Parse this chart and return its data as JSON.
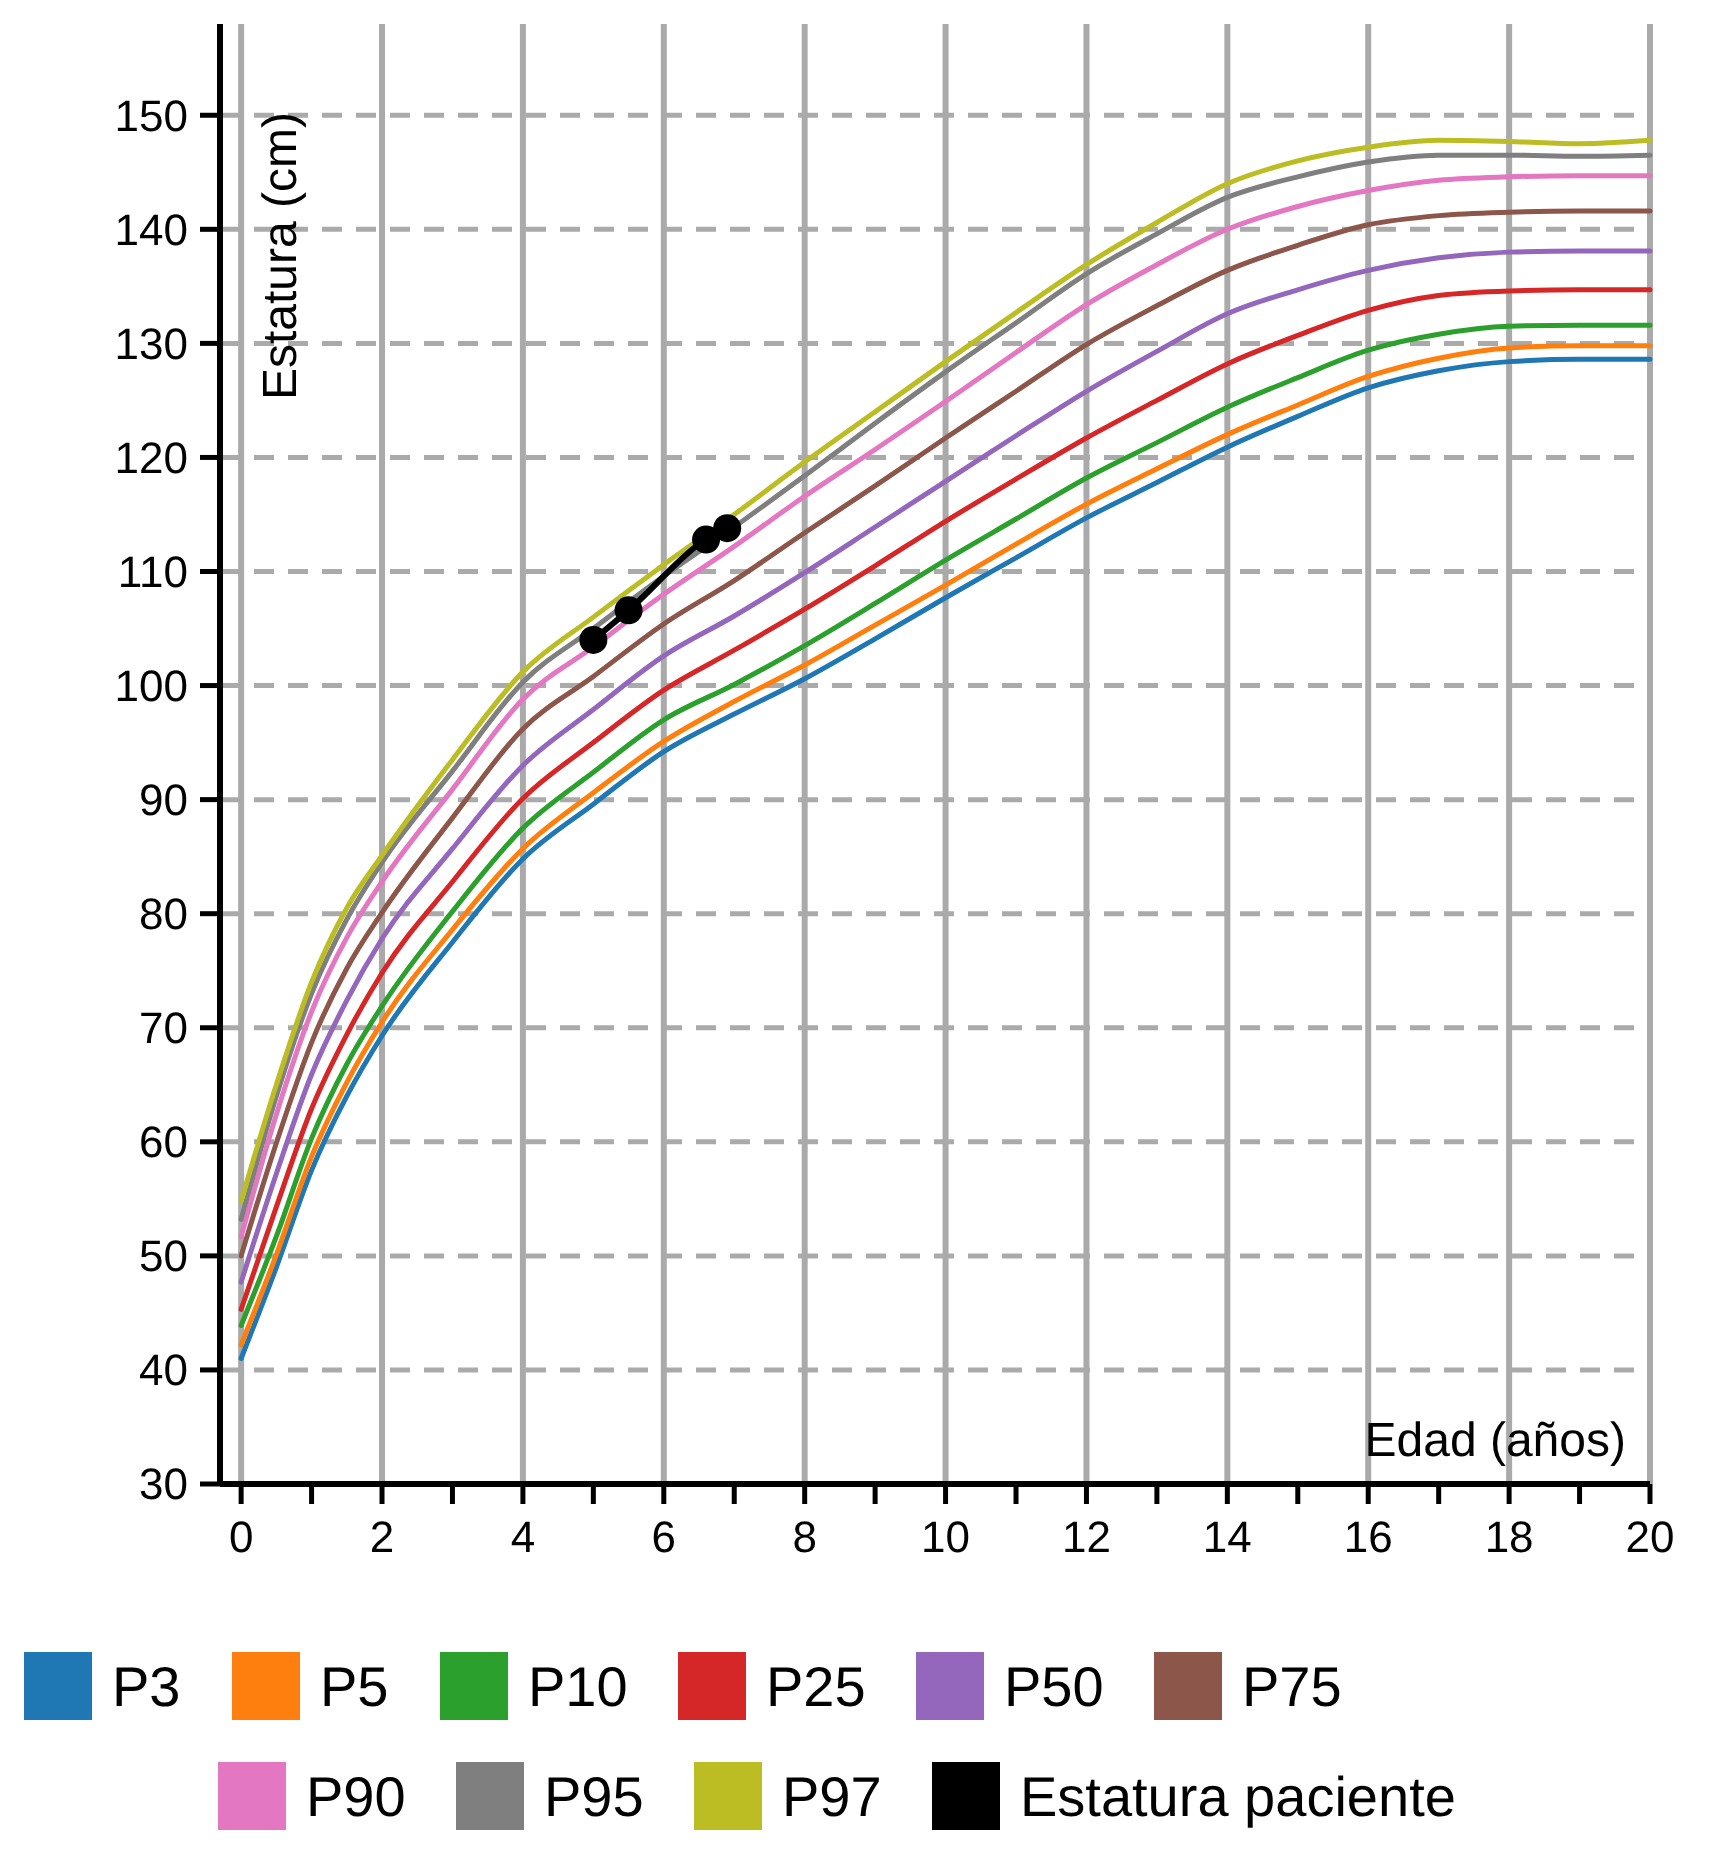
{
  "chart_data": {
    "type": "line",
    "xlabel": "Edad (años)",
    "ylabel": "Estatura (cm)",
    "x": [
      0,
      0.5,
      1,
      1.5,
      2,
      3,
      4,
      5,
      6,
      7,
      8,
      9,
      10,
      11,
      12,
      13,
      14,
      15,
      16,
      17,
      18,
      19,
      20
    ],
    "xlim": [
      -0.3,
      20
    ],
    "ylim": [
      30,
      158
    ],
    "xticks": [
      0,
      {
        "value": 1,
        "label": null
      },
      2,
      {
        "value": 3,
        "label": null
      },
      4,
      {
        "value": 5,
        "label": null
      },
      6,
      {
        "value": 7,
        "label": null
      },
      8,
      {
        "value": 9,
        "label": null
      },
      10,
      {
        "value": 11,
        "label": null
      },
      12,
      {
        "value": 13,
        "label": null
      },
      14,
      {
        "value": 15,
        "label": null
      },
      16,
      {
        "value": 17,
        "label": null
      },
      18,
      {
        "value": 19,
        "label": null
      },
      20
    ],
    "yticks": [
      30,
      40,
      50,
      60,
      70,
      80,
      90,
      100,
      110,
      120,
      130,
      140,
      150
    ],
    "grid": true,
    "legend": "bottom",
    "marker": "none",
    "line_style": "solid",
    "series": [
      {
        "name": "P3",
        "color": "#1f77b4",
        "values": [
          41.0,
          49.0,
          57.5,
          64.0,
          69.3,
          77.5,
          84.8,
          89.6,
          94.2,
          97.5,
          100.6,
          104.1,
          107.7,
          111.2,
          114.7,
          117.8,
          120.9,
          123.6,
          126.1,
          127.6,
          128.4,
          128.6,
          128.6
        ]
      },
      {
        "name": "P5",
        "color": "#ff7f0e",
        "values": [
          42.2,
          50.1,
          58.7,
          65.2,
          70.5,
          78.6,
          85.7,
          90.6,
          95.1,
          98.6,
          101.8,
          105.3,
          108.8,
          112.4,
          115.9,
          119.0,
          122.0,
          124.6,
          127.1,
          128.7,
          129.6,
          129.8,
          129.8
        ]
      },
      {
        "name": "P10",
        "color": "#2ca02c",
        "values": [
          43.9,
          51.7,
          60.3,
          66.8,
          71.9,
          80.2,
          87.5,
          92.4,
          97.0,
          100.1,
          103.5,
          107.2,
          111.0,
          114.6,
          118.2,
          121.3,
          124.4,
          127.0,
          129.4,
          130.8,
          131.5,
          131.6,
          131.6
        ]
      },
      {
        "name": "P25",
        "color": "#d62728",
        "values": [
          45.3,
          54.3,
          62.9,
          69.4,
          74.8,
          82.8,
          90.1,
          95.0,
          99.6,
          103.1,
          106.7,
          110.5,
          114.4,
          118.1,
          121.7,
          125.0,
          128.2,
          130.7,
          132.9,
          134.2,
          134.6,
          134.7,
          134.7
        ]
      },
      {
        "name": "P50",
        "color": "#9467bd",
        "values": [
          47.7,
          57.2,
          65.9,
          72.4,
          77.8,
          85.7,
          93.0,
          97.9,
          102.6,
          106.1,
          109.9,
          113.9,
          117.9,
          121.9,
          125.8,
          129.3,
          132.6,
          134.7,
          136.4,
          137.5,
          138.0,
          138.1,
          138.1
        ]
      },
      {
        "name": "P75",
        "color": "#8c564b",
        "values": [
          50.0,
          59.9,
          68.7,
          75.2,
          80.1,
          88.4,
          96.2,
          100.8,
          105.4,
          109.2,
          113.4,
          117.5,
          121.7,
          125.8,
          129.9,
          133.3,
          136.4,
          138.6,
          140.4,
          141.2,
          141.5,
          141.6,
          141.6
        ]
      },
      {
        "name": "P90",
        "color": "#e377c2",
        "values": [
          51.7,
          62.4,
          71.4,
          77.9,
          82.8,
          90.9,
          98.8,
          103.4,
          108.0,
          112.2,
          116.6,
          120.7,
          124.9,
          129.2,
          133.4,
          136.9,
          140.0,
          142.0,
          143.4,
          144.3,
          144.6,
          144.7,
          144.7
        ]
      },
      {
        "name": "P95",
        "color": "#7f7f7f",
        "values": [
          53.2,
          64.0,
          73.0,
          79.5,
          84.5,
          92.5,
          100.3,
          105.0,
          109.6,
          113.9,
          118.4,
          123.0,
          127.5,
          131.8,
          136.1,
          139.6,
          142.8,
          144.6,
          145.9,
          146.5,
          146.5,
          146.4,
          146.5
        ]
      },
      {
        "name": "P97",
        "color": "#bcbd22",
        "values": [
          54.8,
          65.0,
          74.0,
          80.5,
          85.1,
          93.5,
          101.2,
          106.0,
          110.6,
          115.0,
          119.6,
          124.0,
          128.4,
          132.7,
          136.9,
          140.6,
          144.0,
          146.0,
          147.2,
          147.8,
          147.7,
          147.5,
          147.8
        ]
      },
      {
        "name": "Estatura paciente",
        "color": "#000000",
        "marker": "circle",
        "x": [
          5.0,
          5.5,
          6.6,
          6.9
        ],
        "values": [
          104.0,
          106.6,
          112.8,
          113.8
        ]
      }
    ]
  }
}
